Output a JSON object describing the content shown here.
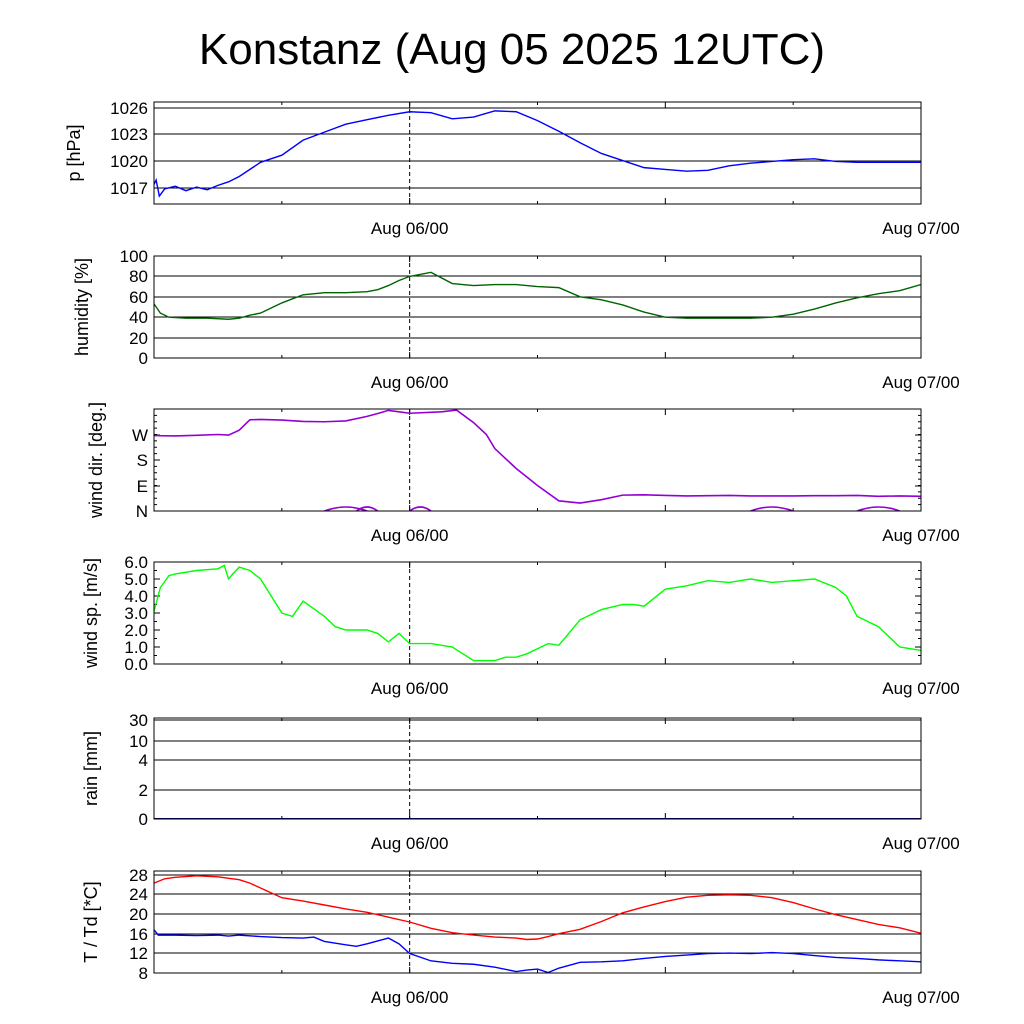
{
  "title": "Konstanz (Aug 05 2025 12UTC)",
  "colors": {
    "pressure": "#0000ff",
    "humidity": "#006400",
    "wind_dir": "#9400d3",
    "wind_speed": "#00ff00",
    "rain": "#000080",
    "temperature": "#ff0000",
    "dewpoint": "#0000ff"
  },
  "chart_data": [
    {
      "type": "line",
      "ylabel": "p [hPa]",
      "x_ticks": [
        "Aug 06/00",
        "Aug 07/00"
      ],
      "x_range_hours": [
        0,
        36
      ],
      "yticks": [
        "1017",
        "1020",
        "1023",
        "1026"
      ],
      "ylim": [
        1015.3,
        1026.8
      ],
      "grid": true,
      "series": [
        {
          "color": "#0000ff",
          "x": [
            0,
            0.1,
            0.25,
            0.5,
            1,
            1.5,
            2,
            2.5,
            3,
            3.5,
            4,
            5,
            6,
            7,
            8,
            9,
            10,
            11,
            12,
            13,
            14,
            15,
            16,
            17,
            18,
            19,
            20,
            21,
            22,
            23,
            24,
            25,
            26,
            27,
            28,
            29,
            30,
            31,
            32,
            33,
            34,
            35,
            36
          ],
          "values": [
            1017.5,
            1018.0,
            1016.2,
            1017.0,
            1017.3,
            1016.8,
            1017.2,
            1016.9,
            1017.4,
            1017.8,
            1018.4,
            1020.0,
            1020.8,
            1022.5,
            1023.4,
            1024.3,
            1024.8,
            1025.3,
            1025.7,
            1025.6,
            1024.9,
            1025.1,
            1025.8,
            1025.7,
            1024.7,
            1023.5,
            1022.2,
            1021.0,
            1020.2,
            1019.4,
            1019.2,
            1019.0,
            1019.1,
            1019.6,
            1019.9,
            1020.1,
            1020.3,
            1020.4,
            1020.1,
            1020.0,
            1020.0,
            1020.0,
            1020.0
          ]
        }
      ]
    },
    {
      "type": "line",
      "ylabel": "humidity [%]",
      "x_ticks": [
        "Aug 06/00",
        "Aug 07/00"
      ],
      "x_range_hours": [
        0,
        36
      ],
      "yticks": [
        "0",
        "20",
        "40",
        "60",
        "80",
        "100"
      ],
      "ylim": [
        0,
        100
      ],
      "grid": true,
      "series": [
        {
          "color": "#006400",
          "x": [
            0,
            0.3,
            0.7,
            1.5,
            2.5,
            3.5,
            4,
            4.5,
            5,
            6,
            6.5,
            7,
            8,
            9,
            10,
            10.5,
            11,
            11.5,
            12,
            13,
            14,
            15,
            16,
            17,
            18,
            19,
            20,
            21,
            22,
            23,
            24,
            25,
            26,
            27,
            28,
            29,
            30,
            31,
            32,
            33,
            34,
            35,
            36
          ],
          "values": [
            53,
            44,
            40,
            39,
            39,
            38,
            39,
            42,
            44,
            54,
            58,
            62,
            64,
            64,
            65,
            67,
            71,
            76,
            80,
            84,
            73,
            71,
            72,
            72,
            70,
            69,
            60,
            57,
            52,
            45,
            40,
            39,
            39,
            39,
            39,
            40,
            43,
            48,
            54,
            59,
            63,
            66,
            72
          ]
        }
      ]
    },
    {
      "type": "scatter",
      "ylabel": "wind dir. [deg.]",
      "x_ticks": [
        "Aug 06/00",
        "Aug 07/00"
      ],
      "x_range_hours": [
        0,
        36
      ],
      "yticks": [
        "N",
        "E",
        "S",
        "W"
      ],
      "ylim": [
        0,
        360
      ],
      "grid": false,
      "series": [
        {
          "color": "#9400d3",
          "x": [
            0,
            1,
            2,
            3,
            3.5,
            4,
            4.5,
            5,
            6,
            7,
            8,
            9,
            10,
            10.5,
            11,
            11.5,
            12,
            13.5,
            14.2,
            15,
            15.6,
            16,
            17,
            18,
            19,
            20,
            21,
            22,
            23,
            24,
            25,
            26,
            27,
            28,
            29,
            30,
            31,
            32,
            33,
            34,
            35,
            36
          ],
          "values": [
            266,
            265,
            267,
            270,
            268,
            285,
            322,
            323,
            321,
            316,
            315,
            318,
            334,
            344,
            355,
            350,
            345,
            350,
            356,
            312,
            270,
            220,
            150,
            90,
            36,
            28,
            40,
            56,
            57,
            55,
            53,
            54,
            55,
            53,
            53,
            53,
            54,
            54,
            55,
            52,
            53,
            52
          ]
        }
      ]
    },
    {
      "type": "line",
      "ylabel": "wind sp. [m/s]",
      "x_ticks": [
        "Aug 06/00",
        "Aug 07/00"
      ],
      "x_range_hours": [
        0,
        36
      ],
      "yticks": [
        "0.0",
        "1.0",
        "2.0",
        "3.0",
        "4.0",
        "5.0",
        "6.0"
      ],
      "ylim": [
        0,
        6
      ],
      "grid": false,
      "series": [
        {
          "color": "#00ff00",
          "x": [
            0,
            0.3,
            0.7,
            1,
            2,
            3,
            3.3,
            3.5,
            3.7,
            4,
            4.5,
            5,
            6,
            6.5,
            7,
            8,
            8.5,
            9,
            10,
            10.5,
            11,
            11.5,
            12,
            13,
            14,
            15,
            16,
            16.5,
            17,
            17.5,
            18,
            18.5,
            19,
            20,
            21,
            22,
            22.5,
            23,
            24,
            25,
            26,
            27,
            27.5,
            28,
            29,
            30,
            31,
            32,
            32.5,
            33,
            34,
            35,
            36
          ],
          "values": [
            3.1,
            4.5,
            5.2,
            5.3,
            5.5,
            5.6,
            5.8,
            5.0,
            5.3,
            5.7,
            5.5,
            5.0,
            3.0,
            2.8,
            3.7,
            2.8,
            2.2,
            2.0,
            2.0,
            1.8,
            1.3,
            1.8,
            1.2,
            1.2,
            1.0,
            0.2,
            0.2,
            0.4,
            0.4,
            0.6,
            0.9,
            1.2,
            1.1,
            2.6,
            3.2,
            3.5,
            3.5,
            3.4,
            4.4,
            4.6,
            4.9,
            4.8,
            4.9,
            5.0,
            4.8,
            4.9,
            5.0,
            4.5,
            4.0,
            2.8,
            2.2,
            1.0,
            0.8
          ]
        }
      ]
    },
    {
      "type": "line",
      "ylabel": "rain [mm]",
      "x_ticks": [
        "Aug 06/00",
        "Aug 07/00"
      ],
      "x_range_hours": [
        0,
        36
      ],
      "yticks": [
        "0",
        "2",
        "4",
        "10",
        "30"
      ],
      "ylim": [
        0,
        30
      ],
      "grid": true,
      "series": [
        {
          "color": "#000080",
          "x": [
            0,
            36
          ],
          "values": [
            0,
            0
          ]
        }
      ]
    },
    {
      "type": "line",
      "ylabel": "T / Td [*C]",
      "x_ticks": [
        "Aug 06/00",
        "Aug 07/00"
      ],
      "x_range_hours": [
        0,
        36
      ],
      "yticks": [
        "8",
        "12",
        "16",
        "20",
        "24",
        "28"
      ],
      "ylim": [
        8,
        29
      ],
      "grid": true,
      "series": [
        {
          "color": "#ff0000",
          "x": [
            0,
            0.5,
            1,
            2,
            3,
            3.5,
            4,
            4.5,
            5,
            6,
            7,
            8,
            9,
            10,
            11,
            12,
            13,
            14,
            15,
            16,
            17,
            17.5,
            18,
            18.5,
            19,
            20,
            21,
            22,
            23,
            24,
            25,
            26,
            27,
            28,
            29,
            30,
            31,
            32,
            33,
            34,
            35,
            36
          ],
          "values": [
            26.5,
            27.4,
            27.7,
            28.0,
            27.8,
            27.5,
            27.2,
            26.5,
            25.5,
            23.5,
            22.8,
            22.0,
            21.2,
            20.5,
            19.5,
            18.5,
            17.2,
            16.3,
            15.8,
            15.4,
            15.2,
            14.9,
            15.0,
            15.5,
            16.1,
            17.0,
            18.6,
            20.4,
            21.6,
            22.7,
            23.6,
            24.0,
            24.1,
            24.0,
            23.5,
            22.5,
            21.2,
            20.0,
            19.0,
            18.0,
            17.3,
            16.2
          ]
        }
      ]
    },
    {
      "type": "line",
      "ylabel": "",
      "x_range_hours": [
        0,
        36
      ],
      "ylim": [
        8,
        29
      ],
      "series": [
        {
          "color": "#0000ff",
          "x": [
            0,
            0.2,
            1,
            2,
            3,
            3.5,
            4,
            5,
            6,
            7,
            7.5,
            8,
            9,
            9.5,
            10,
            10.5,
            11,
            11.5,
            12,
            13,
            14,
            15,
            16,
            17,
            17.5,
            18,
            18.5,
            19,
            20,
            21,
            22,
            23,
            24,
            25,
            26,
            27,
            28,
            29,
            30,
            31,
            32,
            33,
            34,
            35,
            36
          ],
          "values": [
            16.9,
            15.8,
            15.8,
            15.7,
            15.8,
            15.6,
            15.8,
            15.5,
            15.3,
            15.2,
            15.4,
            14.5,
            13.8,
            13.5,
            14.0,
            14.6,
            15.2,
            14.0,
            12.0,
            10.5,
            10.0,
            9.8,
            9.2,
            8.3,
            8.6,
            8.8,
            8.1,
            9.0,
            10.2,
            10.3,
            10.5,
            11.0,
            11.4,
            11.7,
            12.0,
            12.1,
            12.0,
            12.2,
            12.0,
            11.6,
            11.2,
            11.0,
            10.7,
            10.5,
            10.3
          ]
        }
      ]
    }
  ]
}
